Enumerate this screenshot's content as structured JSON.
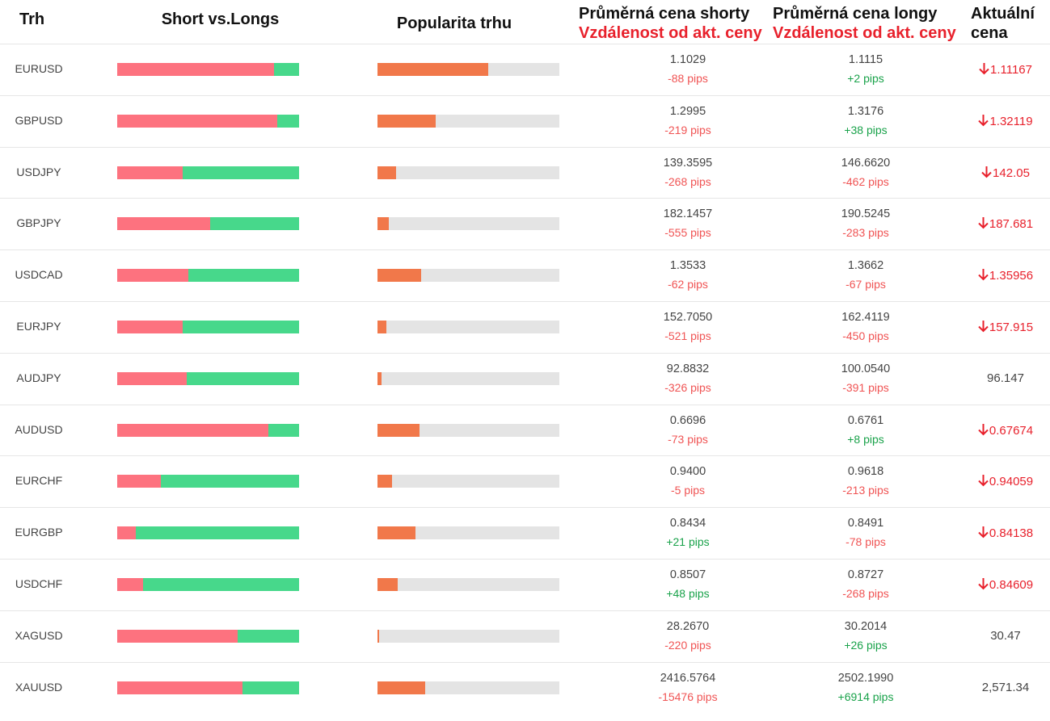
{
  "header": {
    "market": "Trh",
    "short_vs_longs": "Short vs.Longs",
    "popularity": "Popularita trhu",
    "avg_short_title": "Průměrná cena shorty",
    "avg_short_sub": "Vzdálenost od akt. ceny",
    "avg_long_title": "Průměrná cena longy",
    "avg_long_sub": "Vzdálenost od akt. ceny",
    "current_line1": "Aktuální",
    "current_line2": "cena"
  },
  "colors": {
    "short": "#fd727f",
    "long": "#47d88b",
    "popularity": "#f1784a",
    "popularity_track": "#e4e4e4",
    "negative": "#f05454",
    "positive": "#19a24a",
    "down": "#e8212c"
  },
  "rows": [
    {
      "market": "EURUSD",
      "short_pct": 86,
      "popularity_pct": 61,
      "avg_short": "1.1029",
      "short_pips": "-88 pips",
      "avg_long": "1.1115",
      "long_pips": "+2 pips",
      "current": "1.11167",
      "trend": "down"
    },
    {
      "market": "GBPUSD",
      "short_pct": 88,
      "popularity_pct": 32,
      "avg_short": "1.2995",
      "short_pips": "-219 pips",
      "avg_long": "1.3176",
      "long_pips": "+38 pips",
      "current": "1.32119",
      "trend": "down"
    },
    {
      "market": "USDJPY",
      "short_pct": 36,
      "popularity_pct": 10,
      "avg_short": "139.3595",
      "short_pips": "-268 pips",
      "avg_long": "146.6620",
      "long_pips": "-462 pips",
      "current": "142.05",
      "trend": "down"
    },
    {
      "market": "GBPJPY",
      "short_pct": 51,
      "popularity_pct": 6,
      "avg_short": "182.1457",
      "short_pips": "-555 pips",
      "avg_long": "190.5245",
      "long_pips": "-283 pips",
      "current": "187.681",
      "trend": "down"
    },
    {
      "market": "USDCAD",
      "short_pct": 39,
      "popularity_pct": 24,
      "avg_short": "1.3533",
      "short_pips": "-62 pips",
      "avg_long": "1.3662",
      "long_pips": "-67 pips",
      "current": "1.35956",
      "trend": "down"
    },
    {
      "market": "EURJPY",
      "short_pct": 36,
      "popularity_pct": 5,
      "avg_short": "152.7050",
      "short_pips": "-521 pips",
      "avg_long": "162.4119",
      "long_pips": "-450 pips",
      "current": "157.915",
      "trend": "down"
    },
    {
      "market": "AUDJPY",
      "short_pct": 38,
      "popularity_pct": 2,
      "avg_short": "92.8832",
      "short_pips": "-326 pips",
      "avg_long": "100.0540",
      "long_pips": "-391 pips",
      "current": "96.147",
      "trend": "flat"
    },
    {
      "market": "AUDUSD",
      "short_pct": 83,
      "popularity_pct": 23,
      "avg_short": "0.6696",
      "short_pips": "-73 pips",
      "avg_long": "0.6761",
      "long_pips": "+8 pips",
      "current": "0.67674",
      "trend": "down"
    },
    {
      "market": "EURCHF",
      "short_pct": 24,
      "popularity_pct": 8,
      "avg_short": "0.9400",
      "short_pips": "-5 pips",
      "avg_long": "0.9618",
      "long_pips": "-213 pips",
      "current": "0.94059",
      "trend": "down"
    },
    {
      "market": "EURGBP",
      "short_pct": 10,
      "popularity_pct": 21,
      "avg_short": "0.8434",
      "short_pips": "+21 pips",
      "avg_long": "0.8491",
      "long_pips": "-78 pips",
      "current": "0.84138",
      "trend": "down"
    },
    {
      "market": "USDCHF",
      "short_pct": 14,
      "popularity_pct": 11,
      "avg_short": "0.8507",
      "short_pips": "+48 pips",
      "avg_long": "0.8727",
      "long_pips": "-268 pips",
      "current": "0.84609",
      "trend": "down"
    },
    {
      "market": "XAGUSD",
      "short_pct": 66,
      "popularity_pct": 1,
      "avg_short": "28.2670",
      "short_pips": "-220 pips",
      "avg_long": "30.2014",
      "long_pips": "+26 pips",
      "current": "30.47",
      "trend": "flat"
    },
    {
      "market": "XAUUSD",
      "short_pct": 69,
      "popularity_pct": 26,
      "avg_short": "2416.5764",
      "short_pips": "-15476 pips",
      "avg_long": "2502.1990",
      "long_pips": "+6914 pips",
      "current": "2,571.34",
      "trend": "flat"
    }
  ]
}
